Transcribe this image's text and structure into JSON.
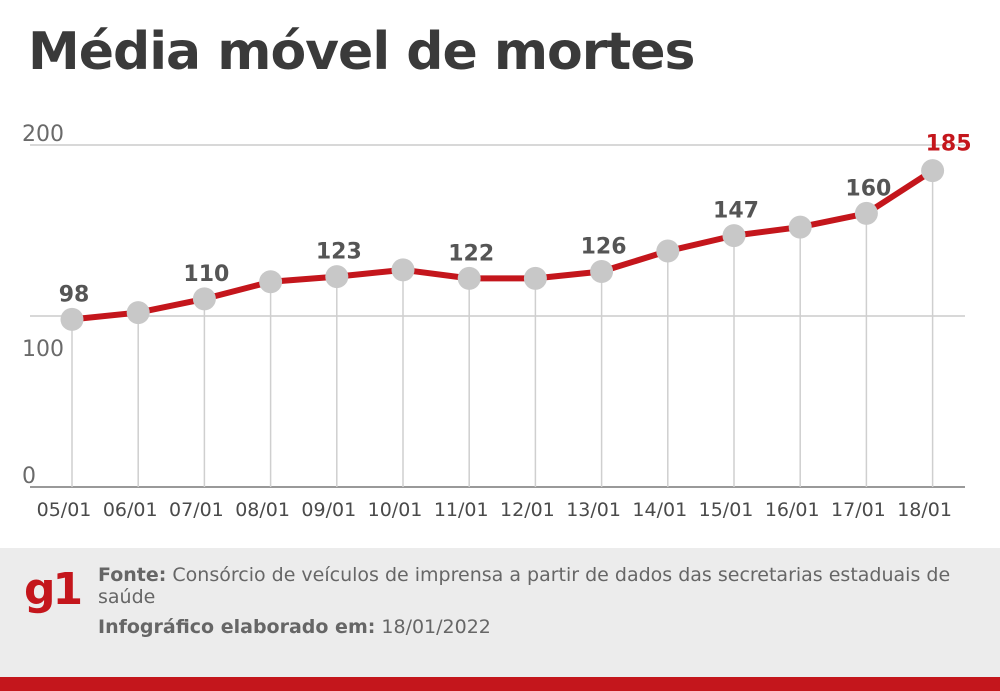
{
  "title": "Média móvel de mortes",
  "chart_data": {
    "type": "line",
    "title": "Média móvel de mortes",
    "categories": [
      "05/01",
      "06/01",
      "07/01",
      "08/01",
      "09/01",
      "10/01",
      "11/01",
      "12/01",
      "13/01",
      "14/01",
      "15/01",
      "16/01",
      "17/01",
      "18/01"
    ],
    "values": [
      98,
      102,
      110,
      120,
      123,
      127,
      122,
      122,
      126,
      138,
      147,
      152,
      160,
      185
    ],
    "data_labels": {
      "0": "98",
      "2": "110",
      "4": "123",
      "6": "122",
      "8": "126",
      "10": "147",
      "12": "160",
      "13": "185"
    },
    "y_ticks": [
      "200",
      "100",
      "0"
    ],
    "ylim": [
      0,
      200
    ],
    "grid": true,
    "colors": {
      "line": "#c4161c",
      "marker": "#c8c8c8",
      "grid": "#cccccc",
      "highlight": "#c4161c"
    }
  },
  "footer": {
    "logo": "g1",
    "source_label": "Fonte:",
    "source_text": "Consórcio de veículos de imprensa a partir de dados das secretarias estaduais de saúde",
    "date_label": "Infográfico elaborado em:",
    "date_text": "18/01/2022"
  }
}
